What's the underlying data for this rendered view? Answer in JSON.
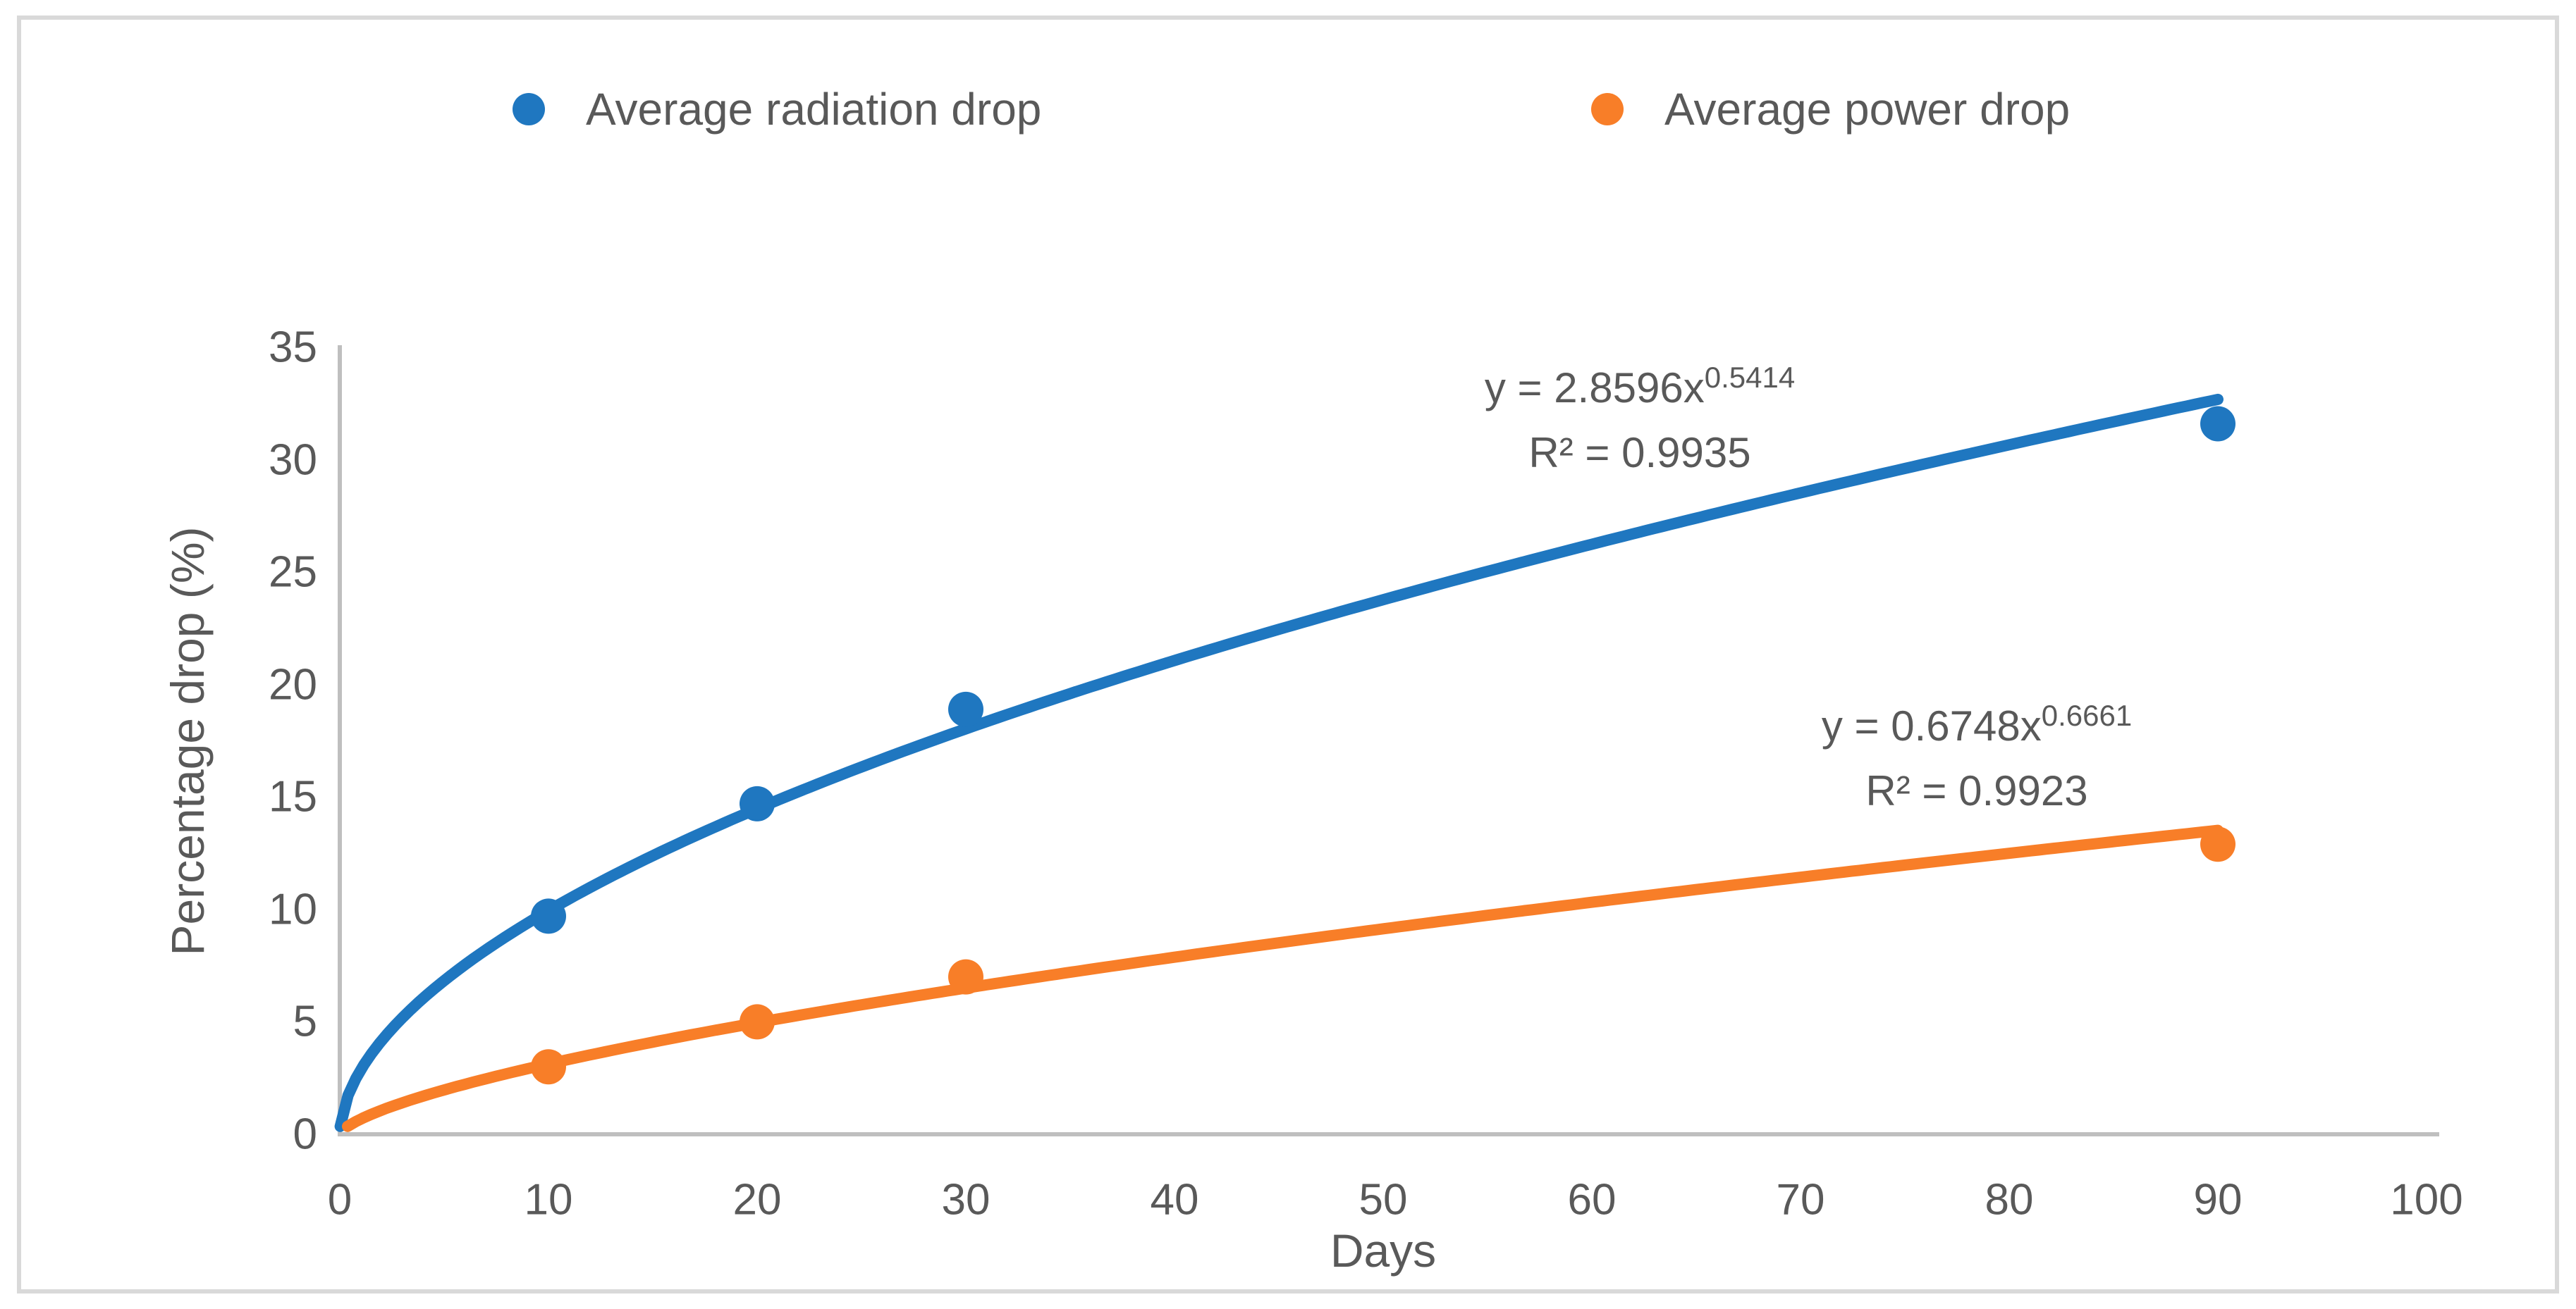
{
  "chart": {
    "background_color": "#FFFFFF",
    "border_color": "#D9D9D9",
    "text_color": "#595959",
    "axis_line_color": "#BFBFBF"
  },
  "legend": {
    "position": "top",
    "items": [
      {
        "label": "Average radiation drop",
        "color": "#1F77C0"
      },
      {
        "label": "Average power drop",
        "color": "#F87E28"
      }
    ]
  },
  "chart_data": {
    "type": "scatter",
    "title": "",
    "xlabel": "Days",
    "ylabel": "Percentage drop (%)",
    "xlim": [
      0,
      100
    ],
    "ylim": [
      0,
      35
    ],
    "xticks": [
      0,
      10,
      20,
      30,
      40,
      50,
      60,
      70,
      80,
      90,
      100
    ],
    "yticks": [
      0,
      5,
      10,
      15,
      20,
      25,
      30,
      35
    ],
    "grid": false,
    "legend_position": "top",
    "series": [
      {
        "name": "Average radiation drop",
        "color": "#1F77C0",
        "marker": "circle",
        "x": [
          10,
          20,
          30,
          90
        ],
        "y": [
          9.7,
          14.7,
          18.9,
          31.6
        ],
        "trendline": {
          "type": "power",
          "coefficient": 2.8596,
          "exponent": 0.5414,
          "equation_base": "y = 2.8596x",
          "equation_exponent": "0.5414",
          "r_squared_label": "R² = 0.9935",
          "r_squared": 0.9935,
          "x_range": [
            0,
            90
          ]
        }
      },
      {
        "name": "Average power drop",
        "color": "#F87E28",
        "marker": "circle",
        "x": [
          10,
          20,
          30,
          90
        ],
        "y": [
          3.0,
          5.0,
          7.0,
          12.9
        ],
        "trendline": {
          "type": "power",
          "coefficient": 0.6748,
          "exponent": 0.6661,
          "equation_base": "y = 0.6748x",
          "equation_exponent": "0.6661",
          "r_squared_label": "R² = 0.9923",
          "r_squared": 0.9923,
          "x_range": [
            0,
            90
          ]
        }
      }
    ]
  }
}
